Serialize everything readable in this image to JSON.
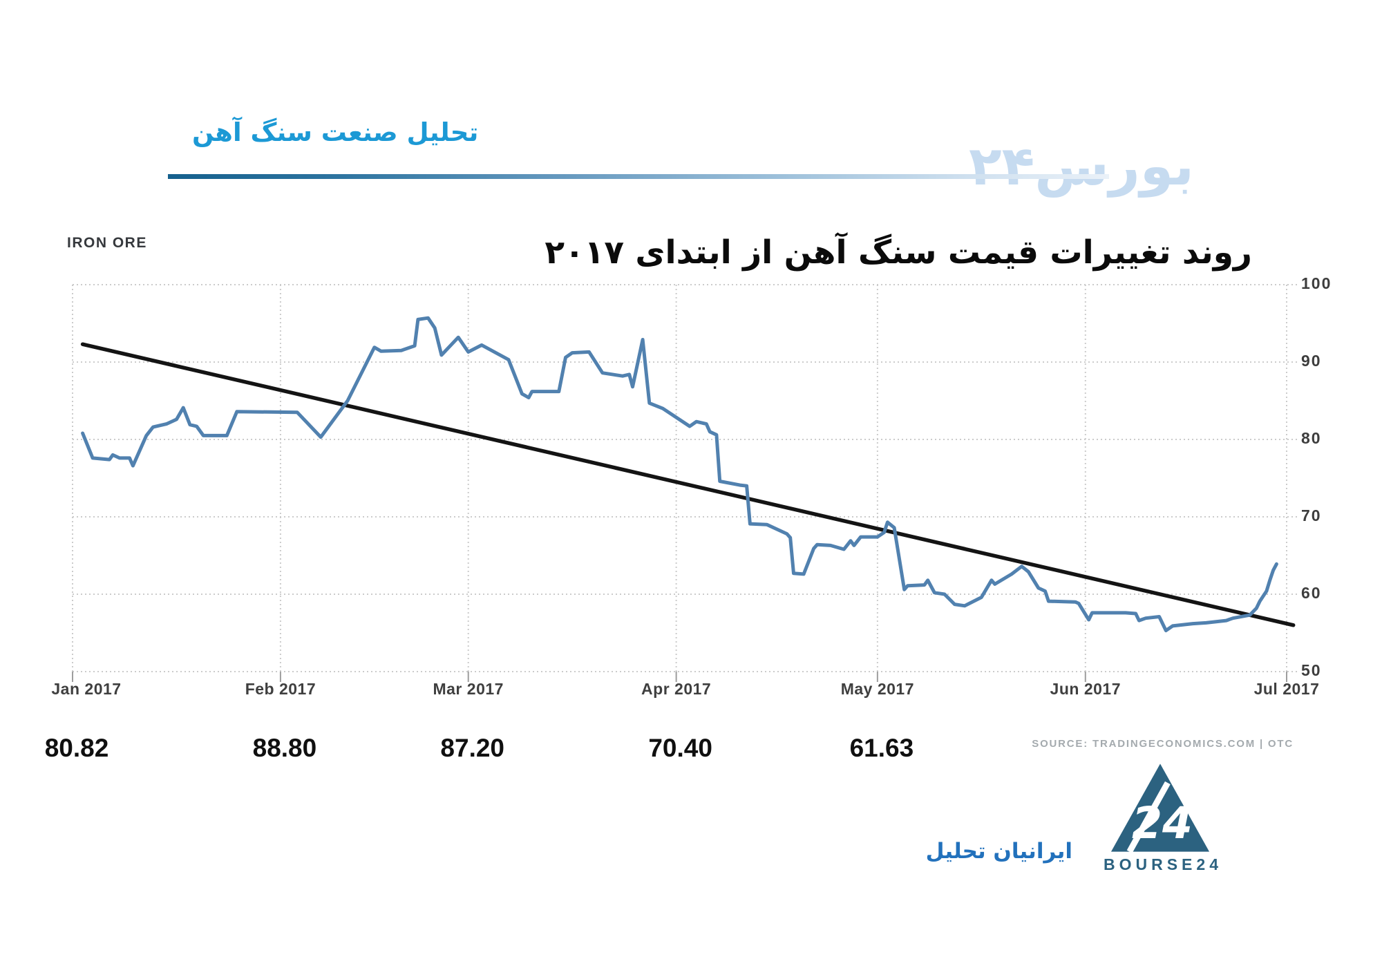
{
  "header": {
    "title": "تحلیل صنعت سنگ آهن",
    "watermark": "بورس۲۴"
  },
  "chart": {
    "name": "IRON ORE",
    "overlay_title": "روند تغییرات قیمت سنگ آهن از ابتدای ۲۰۱۷"
  },
  "chart_data": {
    "type": "line",
    "title": "IRON ORE",
    "xlabel": "",
    "ylabel": "",
    "ylim": [
      50,
      100
    ],
    "grid": true,
    "legend": "none",
    "x_axis_months": {
      "labels": [
        "Jan 2017",
        "Feb 2017",
        "Mar 2017",
        "Apr 2017",
        "May 2017",
        "Jun 2017",
        "Jul 2017"
      ],
      "day_offsets": [
        0,
        31,
        59,
        90,
        120,
        151,
        181
      ]
    },
    "y_ticks": [
      100,
      90,
      80,
      70,
      60,
      50
    ],
    "series": [
      {
        "name": "iron-ore-price",
        "color": "#5181af",
        "width": 5,
        "points_day_value": [
          [
            1.5,
            80.8
          ],
          [
            3,
            77.6
          ],
          [
            5.5,
            77.4
          ],
          [
            6,
            78
          ],
          [
            7,
            77.6
          ],
          [
            8.5,
            77.6
          ],
          [
            9,
            76.6
          ],
          [
            11,
            80.5
          ],
          [
            12,
            81.6
          ],
          [
            14,
            82
          ],
          [
            15.5,
            82.6
          ],
          [
            16.5,
            84.1
          ],
          [
            17.5,
            81.9
          ],
          [
            18.5,
            81.7
          ],
          [
            19.5,
            80.5
          ],
          [
            23,
            80.5
          ],
          [
            24.5,
            83.6
          ],
          [
            33.5,
            83.5
          ],
          [
            37,
            80.3
          ],
          [
            41,
            85
          ],
          [
            45,
            91.9
          ],
          [
            46,
            91.4
          ],
          [
            49,
            91.5
          ],
          [
            51,
            92.1
          ],
          [
            51.5,
            95.5
          ],
          [
            53,
            95.7
          ],
          [
            54,
            94.4
          ],
          [
            55,
            90.9
          ],
          [
            57.5,
            93.2
          ],
          [
            59,
            91.3
          ],
          [
            61,
            92.2
          ],
          [
            65,
            90.3
          ],
          [
            67,
            85.9
          ],
          [
            68,
            85.4
          ],
          [
            68.5,
            86.2
          ],
          [
            72.5,
            86.2
          ],
          [
            73.5,
            90.6
          ],
          [
            74.5,
            91.2
          ],
          [
            77,
            91.3
          ],
          [
            79,
            88.6
          ],
          [
            82,
            88.2
          ],
          [
            83,
            88.4
          ],
          [
            83.5,
            86.8
          ],
          [
            85,
            92.9
          ],
          [
            86,
            84.7
          ],
          [
            88,
            84
          ],
          [
            92,
            81.7
          ],
          [
            93,
            82.3
          ],
          [
            94.5,
            82
          ],
          [
            95,
            81
          ],
          [
            96,
            80.6
          ],
          [
            96.5,
            74.6
          ],
          [
            99.5,
            74.1
          ],
          [
            100.5,
            74
          ],
          [
            101,
            69.1
          ],
          [
            103.5,
            69
          ],
          [
            106.5,
            67.8
          ],
          [
            107,
            67.3
          ],
          [
            107.5,
            62.7
          ],
          [
            109,
            62.6
          ],
          [
            110.5,
            65.9
          ],
          [
            111,
            66.4
          ],
          [
            113,
            66.3
          ],
          [
            115,
            65.8
          ],
          [
            116,
            66.9
          ],
          [
            116.5,
            66.3
          ],
          [
            117.5,
            67.4
          ],
          [
            120,
            67.4
          ],
          [
            121,
            68
          ],
          [
            121.5,
            69.3
          ],
          [
            122.5,
            68.6
          ],
          [
            124,
            60.6
          ],
          [
            124.5,
            61.1
          ],
          [
            127,
            61.2
          ],
          [
            127.5,
            61.8
          ],
          [
            128.5,
            60.2
          ],
          [
            130,
            60
          ],
          [
            131.5,
            58.7
          ],
          [
            133,
            58.5
          ],
          [
            135.5,
            59.6
          ],
          [
            137,
            61.8
          ],
          [
            137.5,
            61.3
          ],
          [
            140,
            62.6
          ],
          [
            141.5,
            63.6
          ],
          [
            142.5,
            62.9
          ],
          [
            144,
            60.8
          ],
          [
            145,
            60.4
          ],
          [
            145.5,
            59.1
          ],
          [
            149.5,
            59
          ],
          [
            150,
            58.8
          ],
          [
            151.5,
            56.7
          ],
          [
            152,
            57.6
          ],
          [
            157,
            57.6
          ],
          [
            158.5,
            57.5
          ],
          [
            159,
            56.6
          ],
          [
            160,
            56.9
          ],
          [
            162,
            57.1
          ],
          [
            163,
            55.3
          ],
          [
            164,
            55.9
          ],
          [
            167,
            56.2
          ],
          [
            169,
            56.3
          ],
          [
            172,
            56.6
          ],
          [
            173,
            56.9
          ],
          [
            175.5,
            57.3
          ],
          [
            176.5,
            58.2
          ],
          [
            177,
            59.1
          ],
          [
            178,
            60.4
          ],
          [
            178.5,
            61.8
          ],
          [
            179,
            63.1
          ],
          [
            179.5,
            63.9
          ]
        ]
      },
      {
        "name": "downtrend-line",
        "color": "#141414",
        "width": 5.5,
        "points_day_value": [
          [
            1.5,
            92.3
          ],
          [
            182,
            56.0
          ]
        ]
      }
    ],
    "month_value_labels": [
      "80.82",
      "88.80",
      "87.20",
      "70.40",
      "61.63"
    ]
  },
  "footer": {
    "source": "SOURCE: TRADINGECONOMICS.COM | OTC",
    "brand": "BOURSE24",
    "brand_fa": "ایرانیان تحلیل"
  },
  "colors": {
    "header_accent": "#1c99d5",
    "watermark_blue": "#bdd5ee",
    "line_blue": "#5181af",
    "trend_black": "#141414",
    "grid_gray": "#cbcbcb",
    "logo_teal": "#2c6280",
    "brand_fa_blue": "#2271bc"
  }
}
